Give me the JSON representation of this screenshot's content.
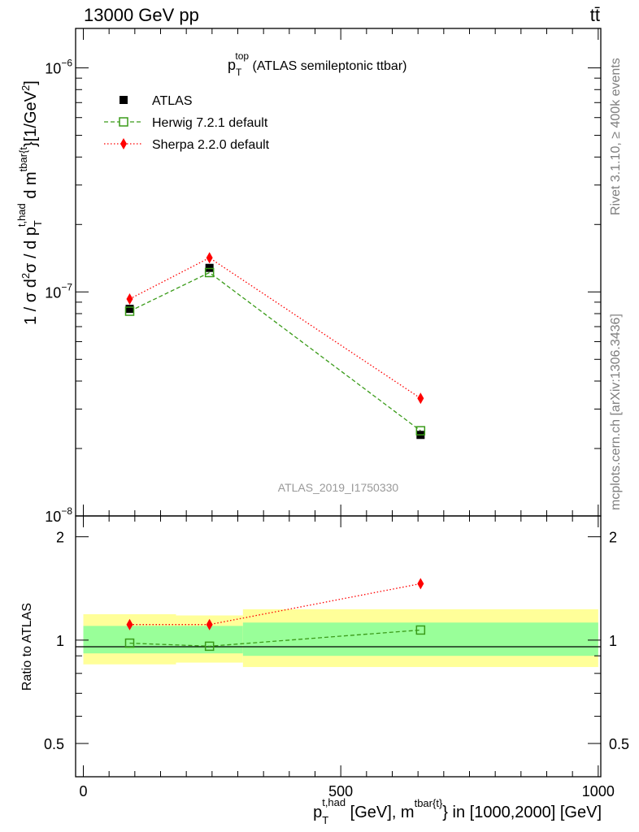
{
  "header": {
    "energy_label": "13000 GeV pp",
    "process_label": "tt̄"
  },
  "side": {
    "rivet": "Rivet 3.1.10, ≥ 400k events",
    "source": "mcplots.cern.ch [arXiv:1306.3436]"
  },
  "chart_data": [
    {
      "type": "line",
      "panel": "main",
      "title_main": "p",
      "title_sup": "top",
      "title_sub": "T",
      "title_rest": " (ATLAS semileptonic ttbar)",
      "analysis_label": "ATLAS_2019_I1750330",
      "ylabel": "1 / σ d²σ / d p_T^{t,had} d m^{tbar{t}} [1/GeV²]",
      "yscale": "log",
      "ylim": [
        1e-08,
        1.5e-06
      ],
      "xlim": [
        -15,
        1005
      ],
      "ytick_labels": {
        "major_-8": "10",
        "major_-8_exp": "−8",
        "major_-7": "10",
        "major_-7_exp": "−7",
        "major_-6": "10",
        "major_-6_exp": "−6"
      },
      "legend_placement": "top-left",
      "x": [
        90,
        245,
        655
      ],
      "series": [
        {
          "name": "ATLAS",
          "values": [
            8.4e-08,
            1.28e-07,
            2.3e-08
          ],
          "color": "#000000",
          "marker": "square"
        },
        {
          "name": "Herwig 7.2.1 default",
          "values": [
            8.2e-08,
            1.22e-07,
            2.4e-08
          ],
          "color": "#3a9b19",
          "marker": "open-square",
          "dash": "dashed"
        },
        {
          "name": "Sherpa 2.2.0 default",
          "values": [
            9.3e-08,
            1.42e-07,
            3.35e-08
          ],
          "color": "#ff0000",
          "marker": "diamond",
          "dash": "dotted"
        }
      ]
    },
    {
      "type": "line",
      "panel": "ratio",
      "ylabel": "Ratio to ATLAS",
      "yscale": "log",
      "ylim": [
        0.4,
        2.3
      ],
      "yticks": [
        0.5,
        1,
        2
      ],
      "ytick_labels": [
        "0.5",
        "1",
        "2"
      ],
      "xlim": [
        -15,
        1005
      ],
      "xticks": [
        0,
        500,
        1000
      ],
      "xtick_labels": [
        "0",
        "500",
        "1000"
      ],
      "xlabel_main": "p",
      "xlabel_sup": "t,had",
      "xlabel_sub": "T",
      "xlabel_mid": " [GeV], m",
      "xlabel_sup2": "tbar{t}",
      "xlabel_rest": "} in [1000,2000] [GeV]",
      "bands": [
        {
          "x0": 0,
          "x1": 180,
          "inner": [
            0.915,
            1.1
          ],
          "outer": [
            0.85,
            1.19
          ]
        },
        {
          "x0": 180,
          "x1": 310,
          "inner": [
            0.915,
            1.1
          ],
          "outer": [
            0.86,
            1.18
          ]
        },
        {
          "x0": 310,
          "x1": 1000,
          "inner": [
            0.9,
            1.125
          ],
          "outer": [
            0.835,
            1.23
          ]
        }
      ],
      "x": [
        90,
        245,
        655
      ],
      "series": [
        {
          "name": "Herwig 7.2.1 default",
          "values": [
            0.98,
            0.96,
            1.07
          ],
          "color": "#3a9b19",
          "marker": "open-square",
          "dash": "dashed"
        },
        {
          "name": "Sherpa 2.2.0 default",
          "values": [
            1.11,
            1.11,
            1.46
          ],
          "color": "#ff0000",
          "marker": "diamond",
          "dash": "dotted"
        }
      ]
    }
  ]
}
